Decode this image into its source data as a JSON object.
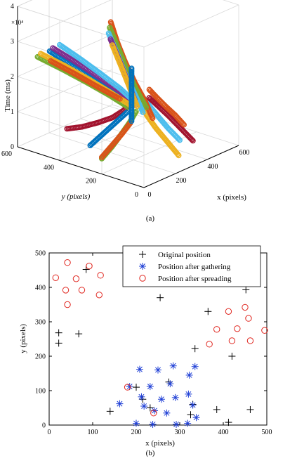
{
  "figure": {
    "panel_a_label": "(a)",
    "panel_b_label": "(b)"
  },
  "chart_data": [
    {
      "type": "scatter3d",
      "panel": "(a)",
      "title": "",
      "xlabel": "x (pixels)",
      "ylabel": "y (pixels)",
      "zlabel": "Time (ms)",
      "z_multiplier": "×10⁴",
      "x_ticks": [
        "0",
        "200",
        "400",
        "600"
      ],
      "y_ticks": [
        "0",
        "200",
        "400",
        "600"
      ],
      "z_ticks": [
        "0",
        "1",
        "2",
        "3",
        "4"
      ],
      "xlim": [
        0,
        600
      ],
      "ylim": [
        0,
        600
      ],
      "zlim": [
        0,
        4
      ],
      "grid": true,
      "marker": "circle",
      "series_colors": [
        "#0072BD",
        "#D95319",
        "#EDB120",
        "#7E2F8E",
        "#77AC30",
        "#4DBEEE",
        "#A2142F"
      ],
      "trajectories": [
        {
          "color": "#A2142F",
          "points": [
            [
              20,
              380,
              0.9
            ],
            [
              60,
              340,
              0.95
            ],
            [
              110,
              300,
              1.05
            ],
            [
              160,
              270,
              1.15
            ],
            [
              200,
              250,
              1.3
            ],
            [
              230,
              230,
              1.5
            ]
          ]
        },
        {
          "color": "#77AC30",
          "points": [
            [
              40,
              230,
              0.3
            ],
            [
              90,
              220,
              0.55
            ],
            [
              140,
              215,
              0.8
            ],
            [
              190,
              212,
              1.05
            ],
            [
              230,
              210,
              1.3
            ]
          ]
        },
        {
          "color": "#0072BD",
          "points": [
            [
              60,
              300,
              0.5
            ],
            [
              110,
              280,
              0.75
            ],
            [
              160,
              260,
              1.0
            ],
            [
              210,
              240,
              1.25
            ]
          ]
        },
        {
          "color": "#D95319",
          "points": [
            [
              80,
              260,
              0.2
            ],
            [
              130,
              250,
              0.45
            ],
            [
              180,
              240,
              0.7
            ],
            [
              220,
              230,
              0.95
            ]
          ]
        },
        {
          "color": "#0072BD",
          "points": [
            [
              150,
              560,
              2.5
            ],
            [
              180,
              480,
              2.2
            ],
            [
              210,
              400,
              1.9
            ],
            [
              240,
              320,
              1.6
            ],
            [
              260,
              250,
              1.35
            ]
          ]
        },
        {
          "color": "#7E2F8E",
          "points": [
            [
              170,
              560,
              2.55
            ],
            [
              200,
              470,
              2.25
            ],
            [
              225,
              380,
              1.95
            ],
            [
              250,
              300,
              1.65
            ],
            [
              265,
              240,
              1.35
            ]
          ]
        },
        {
          "color": "#77AC30",
          "points": [
            [
              100,
              580,
              2.4
            ],
            [
              150,
              500,
              2.1
            ],
            [
              195,
              420,
              1.8
            ],
            [
              235,
              340,
              1.5
            ],
            [
              260,
              270,
              1.25
            ]
          ]
        },
        {
          "color": "#EDB120",
          "points": [
            [
              120,
              580,
              2.45
            ],
            [
              170,
              500,
              2.15
            ],
            [
              210,
              420,
              1.85
            ],
            [
              245,
              340,
              1.55
            ],
            [
              265,
              260,
              1.3
            ]
          ]
        },
        {
          "color": "#4DBEEE",
          "points": [
            [
              200,
              550,
              2.6
            ],
            [
              225,
              470,
              2.3
            ],
            [
              245,
              390,
              2.0
            ],
            [
              262,
              310,
              1.7
            ],
            [
              270,
              240,
              1.4
            ]
          ]
        },
        {
          "color": "#D95319",
          "points": [
            [
              130,
              540,
              2.3
            ],
            [
              175,
              460,
              2.0
            ],
            [
              215,
              380,
              1.7
            ],
            [
              248,
              300,
              1.45
            ]
          ]
        },
        {
          "color": "#4DBEEE",
          "points": [
            [
              400,
              130,
              0.3
            ],
            [
              380,
              170,
              0.6
            ],
            [
              360,
              200,
              0.9
            ],
            [
              330,
              215,
              1.2
            ],
            [
              300,
              225,
              1.5
            ]
          ]
        },
        {
          "color": "#A2142F",
          "points": [
            [
              430,
              90,
              0.3
            ],
            [
              410,
              130,
              0.6
            ],
            [
              390,
              170,
              0.9
            ],
            [
              360,
              200,
              1.2
            ],
            [
              320,
              215,
              1.5
            ]
          ]
        },
        {
          "color": "#D95319",
          "points": [
            [
              480,
              170,
              0.5
            ],
            [
              450,
              190,
              0.8
            ],
            [
              410,
              205,
              1.1
            ],
            [
              370,
              215,
              1.4
            ],
            [
              330,
              222,
              1.7
            ]
          ]
        },
        {
          "color": "#EDB120",
          "points": [
            [
              300,
              60,
              0.2
            ],
            [
              295,
              110,
              0.5
            ],
            [
              290,
              160,
              0.8
            ],
            [
              285,
              200,
              1.1
            ],
            [
              280,
              225,
              1.4
            ]
          ]
        },
        {
          "color": "#D95319",
          "points": [
            [
              350,
              420,
              3.2
            ],
            [
              350,
              390,
              2.7
            ],
            [
              348,
              350,
              2.2
            ],
            [
              345,
              300,
              1.7
            ],
            [
              340,
              250,
              1.3
            ],
            [
              335,
              210,
              0.9
            ]
          ]
        },
        {
          "color": "#77AC30",
          "points": [
            [
              330,
              410,
              3.1
            ],
            [
              330,
              370,
              2.6
            ],
            [
              328,
              330,
              2.1
            ],
            [
              325,
              280,
              1.6
            ],
            [
              320,
              230,
              1.2
            ]
          ]
        },
        {
          "color": "#4DBEEE",
          "points": [
            [
              310,
              400,
              3.0
            ],
            [
              310,
              360,
              2.5
            ],
            [
              308,
              320,
              2.0
            ],
            [
              305,
              270,
              1.5
            ],
            [
              300,
              230,
              1.1
            ]
          ]
        },
        {
          "color": "#7E2F8E",
          "points": [
            [
              295,
              380,
              2.9
            ],
            [
              295,
              340,
              2.4
            ],
            [
              293,
              300,
              1.9
            ],
            [
              290,
              260,
              1.4
            ]
          ]
        },
        {
          "color": "#EDB120",
          "points": [
            [
              280,
              360,
              2.8
            ],
            [
              280,
              320,
              2.3
            ],
            [
              278,
              280,
              1.8
            ],
            [
              276,
              240,
              1.3
            ]
          ]
        },
        {
          "color": "#0072BD",
          "points": [
            [
              255,
              250,
              2.4
            ],
            [
              255,
              250,
              1.9
            ],
            [
              255,
              250,
              1.4
            ],
            [
              255,
              250,
              0.9
            ]
          ]
        }
      ]
    },
    {
      "type": "scatter",
      "panel": "(b)",
      "title": "",
      "xlabel": "x (pixels)",
      "ylabel": "y (pixels)",
      "xlim": [
        0,
        500
      ],
      "ylim": [
        0,
        500
      ],
      "x_ticks": [
        "0",
        "100",
        "200",
        "300",
        "400",
        "500"
      ],
      "y_ticks": [
        "0",
        "100",
        "200",
        "300",
        "400",
        "500"
      ],
      "legend_position": "top-center",
      "series": [
        {
          "name": "Original position",
          "marker": "plus",
          "color": "#000000",
          "points": [
            [
              22,
              268
            ],
            [
              22,
              238
            ],
            [
              68,
              265
            ],
            [
              85,
              452
            ],
            [
              140,
              40
            ],
            [
              200,
              110
            ],
            [
              215,
              75
            ],
            [
              255,
              370
            ],
            [
              275,
              125
            ],
            [
              330,
              60
            ],
            [
              325,
              30
            ],
            [
              335,
              222
            ],
            [
              365,
              330
            ],
            [
              385,
              45
            ],
            [
              412,
              8
            ],
            [
              420,
              200
            ],
            [
              452,
              393
            ],
            [
              462,
              45
            ],
            [
              232,
              50
            ]
          ]
        },
        {
          "name": "Position after gathering",
          "marker": "asterisk",
          "color": "#1f3fd6",
          "points": [
            [
              162,
              62
            ],
            [
              185,
              112
            ],
            [
              200,
              5
            ],
            [
              208,
              162
            ],
            [
              212,
              82
            ],
            [
              218,
              55
            ],
            [
              232,
              112
            ],
            [
              238,
              2
            ],
            [
              242,
              42
            ],
            [
              250,
              160
            ],
            [
              258,
              75
            ],
            [
              270,
              35
            ],
            [
              278,
              120
            ],
            [
              285,
              172
            ],
            [
              290,
              80
            ],
            [
              292,
              2
            ],
            [
              318,
              5
            ],
            [
              320,
              90
            ],
            [
              322,
              145
            ],
            [
              330,
              58
            ],
            [
              335,
              170
            ],
            [
              338,
              22
            ]
          ]
        },
        {
          "name": "Position after spreading",
          "marker": "circle",
          "color": "#e0261f",
          "points": [
            [
              15,
              428
            ],
            [
              38,
              392
            ],
            [
              42,
              472
            ],
            [
              42,
              350
            ],
            [
              62,
              425
            ],
            [
              75,
              392
            ],
            [
              92,
              462
            ],
            [
              115,
              378
            ],
            [
              118,
              435
            ],
            [
              180,
              110
            ],
            [
              240,
              35
            ],
            [
              368,
              235
            ],
            [
              385,
              278
            ],
            [
              412,
              330
            ],
            [
              420,
              245
            ],
            [
              432,
              280
            ],
            [
              450,
              342
            ],
            [
              458,
              310
            ],
            [
              462,
              245
            ],
            [
              495,
              275
            ]
          ]
        }
      ]
    }
  ]
}
